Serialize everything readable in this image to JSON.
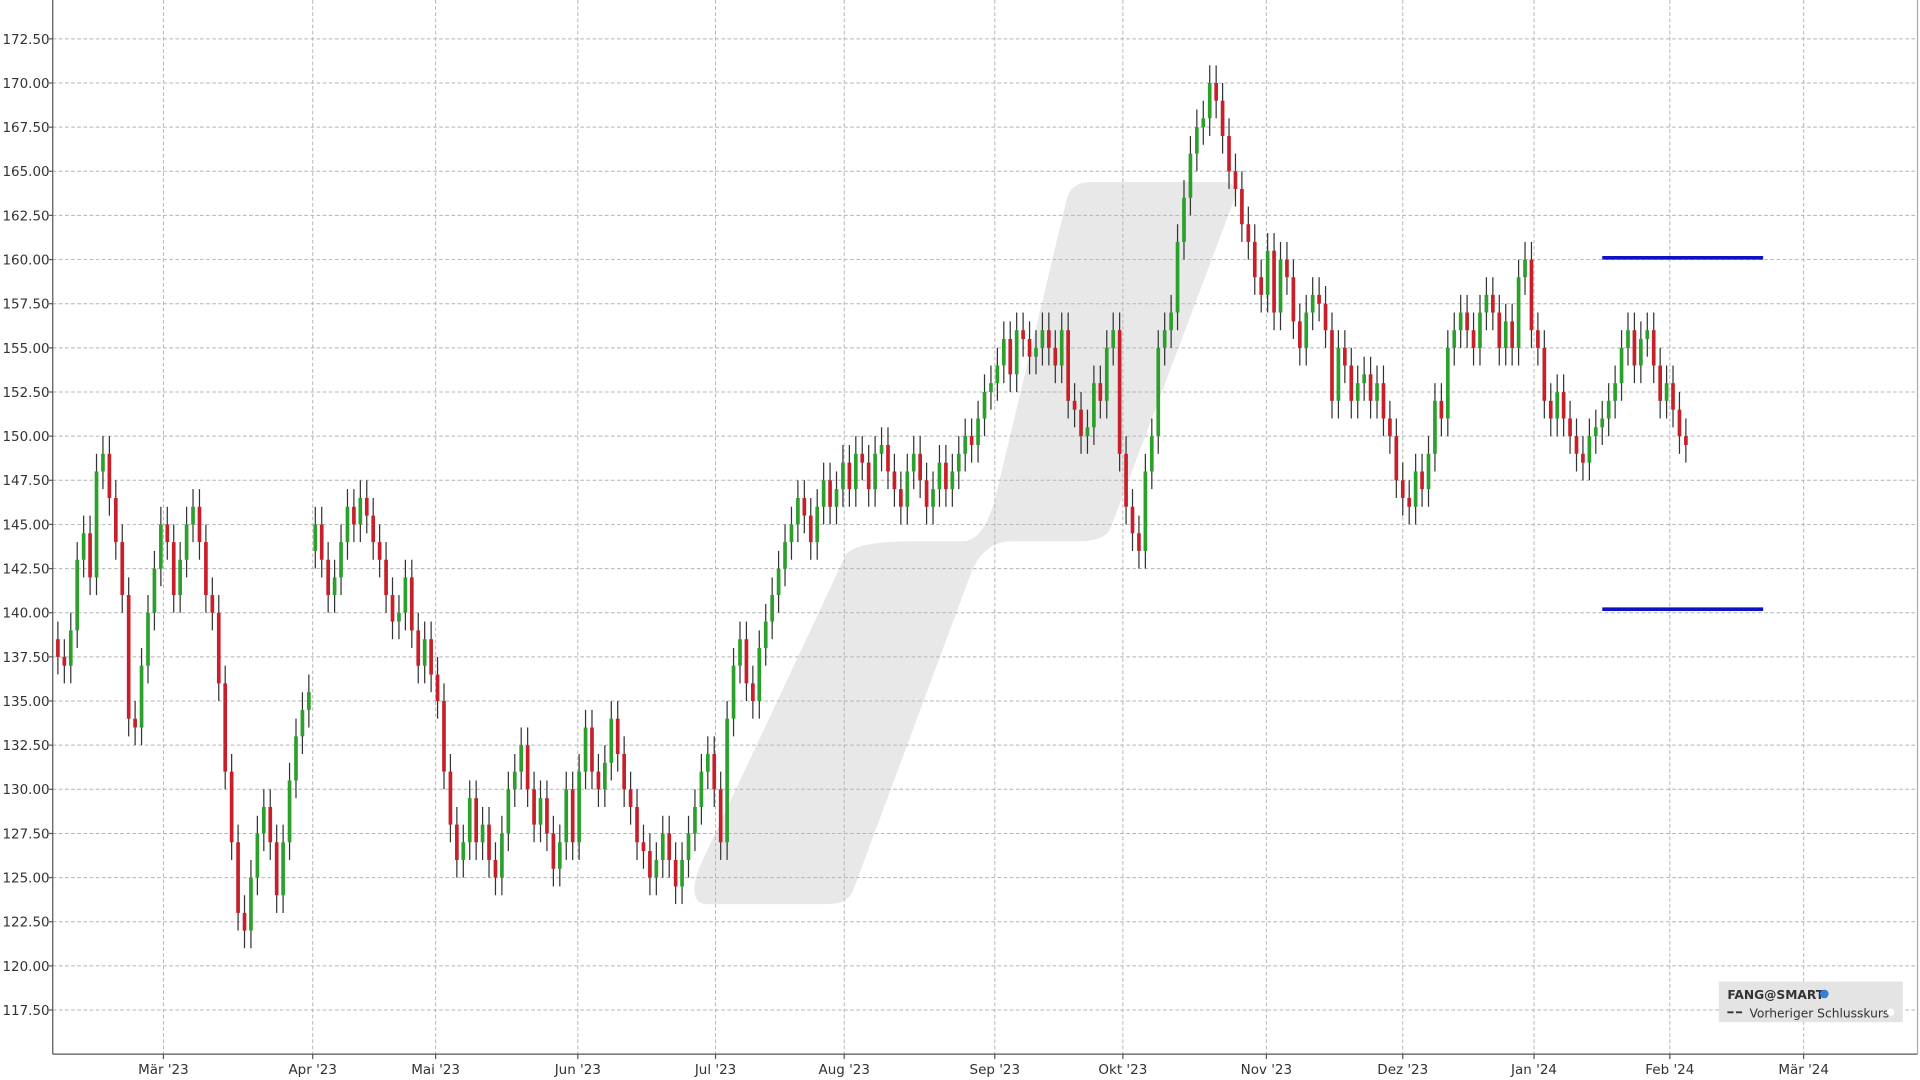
{
  "chart_data": {
    "type": "candlestick",
    "grid": true,
    "up_color": "#2ca02c",
    "down_color": "#c8202a",
    "wick_color": "#333333",
    "xlim": [
      -0.8,
      289
    ],
    "ylim": [
      115,
      174.7
    ],
    "xticks": [
      {
        "value": 16.4,
        "label": "Mär '23"
      },
      {
        "value": 39.6,
        "label": "Apr '23"
      },
      {
        "value": 58.7,
        "label": "Mai '23"
      },
      {
        "value": 80.8,
        "label": "Jun '23"
      },
      {
        "value": 102.2,
        "label": "Jul '23"
      },
      {
        "value": 122.2,
        "label": "Aug '23"
      },
      {
        "value": 145.6,
        "label": "Sep '23"
      },
      {
        "value": 165.5,
        "label": "Okt '23"
      },
      {
        "value": 187.8,
        "label": "Nov '23"
      },
      {
        "value": 209.0,
        "label": "Dez '23"
      },
      {
        "value": 229.4,
        "label": "Jan '24"
      },
      {
        "value": 250.5,
        "label": "Feb '24"
      },
      {
        "value": 271.3,
        "label": "Mär '24"
      }
    ],
    "yticks": [
      {
        "value": 117.5,
        "label": "117.50"
      },
      {
        "value": 120,
        "label": "120.00"
      },
      {
        "value": 122.5,
        "label": "122.50"
      },
      {
        "value": 125,
        "label": "125.00"
      },
      {
        "value": 127.5,
        "label": "127.50"
      },
      {
        "value": 130,
        "label": "130.00"
      },
      {
        "value": 132.5,
        "label": "132.50"
      },
      {
        "value": 135,
        "label": "135.00"
      },
      {
        "value": 137.5,
        "label": "137.50"
      },
      {
        "value": 140,
        "label": "140.00"
      },
      {
        "value": 142.5,
        "label": "142.50"
      },
      {
        "value": 145,
        "label": "145.00"
      },
      {
        "value": 147.5,
        "label": "147.50"
      },
      {
        "value": 150,
        "label": "150.00"
      },
      {
        "value": 152.5,
        "label": "152.50"
      },
      {
        "value": 155,
        "label": "155.00"
      },
      {
        "value": 157.5,
        "label": "157.50"
      },
      {
        "value": 160,
        "label": "160.00"
      },
      {
        "value": 162.5,
        "label": "162.50"
      },
      {
        "value": 165,
        "label": "165.00"
      },
      {
        "value": 167.5,
        "label": "167.50"
      },
      {
        "value": 170,
        "label": "170.00"
      },
      {
        "value": 172.5,
        "label": "172.50"
      }
    ],
    "levels": {
      "color": "#1010c8",
      "values": [
        160.1,
        140.2
      ],
      "xrange": [
        240,
        265
      ]
    },
    "legend": {
      "title": "FANG@SMART",
      "items": [
        "Vorheriger Schlusskurs"
      ]
    },
    "open": [
      138.5,
      137.5,
      137,
      139,
      143,
      144.5,
      142,
      148,
      149,
      146.5,
      144,
      141,
      134,
      133.5,
      137,
      140,
      142.5,
      145,
      144,
      141,
      143,
      145,
      146,
      144,
      141,
      140,
      136,
      131,
      127,
      123,
      122,
      125,
      127.5,
      129,
      127,
      124,
      127,
      130.5,
      133,
      134.5,
      143.5,
      145,
      143,
      141,
      142,
      144,
      146,
      145,
      146.5,
      145.5,
      144,
      143,
      141,
      139.5,
      140,
      142,
      139,
      137,
      138.5,
      136.5,
      135,
      131,
      128,
      126,
      127,
      129.5,
      127,
      128,
      126,
      125,
      127.5,
      130,
      131,
      132.5,
      130,
      128,
      129.5,
      127.5,
      125.5,
      127,
      130,
      127,
      131,
      133.5,
      131,
      130,
      131.5,
      134,
      132,
      130,
      129,
      127,
      126.5,
      125,
      126,
      127.5,
      126,
      124.5,
      126,
      127.5,
      129,
      131,
      132,
      130,
      127,
      134,
      137,
      138.5,
      136,
      135,
      138,
      139.5,
      141,
      142.5,
      144,
      145,
      146.5,
      145.5,
      144,
      146,
      147.5,
      146,
      147,
      148.5,
      147,
      149,
      148.5,
      147,
      149,
      149.5,
      148,
      147,
      146,
      148,
      149,
      147.5,
      146,
      147,
      148.5,
      147,
      148,
      149,
      150,
      149.5,
      151,
      152.5,
      153,
      154,
      155.5,
      153.5,
      156,
      155.5,
      154.5,
      155,
      156,
      155,
      154,
      156,
      152,
      151.5,
      150,
      150.5,
      153,
      152,
      155,
      156,
      149,
      146,
      144.5,
      143.5,
      148,
      150,
      155,
      156,
      157,
      161,
      163.5,
      166,
      167.5,
      168,
      170,
      169,
      167,
      165,
      164,
      162,
      161,
      159,
      158,
      160.5,
      157,
      160,
      159,
      156.5,
      155,
      157,
      158,
      157.5,
      156,
      152,
      155,
      154,
      152,
      153,
      153.5,
      152,
      153,
      151,
      150,
      147.5,
      146.5,
      146,
      148,
      147,
      149,
      152,
      151,
      155,
      156,
      157,
      156,
      155,
      157,
      158,
      157,
      155,
      156.5,
      155,
      159,
      160,
      156,
      155,
      152,
      151,
      152.5,
      151,
      150,
      149,
      148.5,
      150,
      150.5,
      151,
      152,
      153,
      155,
      156,
      154,
      155.5,
      156,
      154,
      152,
      153,
      151.5,
      150
    ],
    "high": [
      139.5,
      138.5,
      140,
      144,
      145.5,
      145.5,
      149,
      150,
      150,
      147.5,
      145,
      142,
      135,
      138,
      141,
      143.5,
      146,
      146,
      145,
      144,
      146,
      147,
      147,
      145,
      142,
      141,
      137,
      132,
      128,
      124,
      126,
      128.5,
      130,
      130,
      128,
      128,
      131.5,
      134,
      135.5,
      136.5,
      146,
      146,
      144,
      143,
      145,
      147,
      147,
      147.5,
      147.5,
      146.5,
      145,
      144,
      142,
      141,
      143,
      143,
      140,
      139.5,
      139.5,
      137.5,
      136,
      132,
      129,
      128,
      130.5,
      130.5,
      129,
      129,
      127,
      128.5,
      131,
      132,
      133.5,
      133.5,
      131,
      130.5,
      130.5,
      128.5,
      128,
      131,
      131,
      132,
      134.5,
      134.5,
      132,
      132.5,
      135,
      135,
      133,
      131,
      130,
      128,
      127.5,
      127,
      128.5,
      128.5,
      127,
      127,
      128.5,
      130,
      132,
      133,
      133,
      131,
      135,
      138,
      139.5,
      139.5,
      137,
      139,
      140.5,
      142,
      143.5,
      145,
      146,
      147.5,
      147.5,
      146.5,
      147,
      148.5,
      148.5,
      148,
      149.5,
      149.5,
      150,
      150,
      149.5,
      150,
      150.5,
      150.5,
      149,
      148,
      149,
      150,
      150,
      148.5,
      148,
      149.5,
      149.5,
      149,
      150,
      151,
      151,
      152,
      153.5,
      154,
      155,
      156.5,
      156.5,
      157,
      157,
      156.5,
      156,
      157,
      157,
      156,
      157,
      157,
      153,
      152.5,
      151.5,
      154,
      154,
      156,
      157,
      157,
      150,
      147,
      145.5,
      149,
      151,
      156,
      157,
      158,
      162,
      164.5,
      167,
      168.5,
      169,
      171,
      171,
      170,
      168,
      166,
      165,
      163,
      162,
      160,
      161.5,
      161.5,
      161,
      161,
      160,
      157.5,
      158,
      159,
      159,
      158.5,
      157,
      156,
      156,
      155,
      154,
      154.5,
      154.5,
      154,
      154,
      152,
      151,
      148.5,
      147.5,
      149,
      149,
      150,
      153,
      153,
      156,
      157,
      158,
      158,
      157,
      158,
      159,
      159,
      158,
      157.5,
      157.5,
      160,
      161,
      161,
      157,
      156,
      153,
      153.5,
      153.5,
      152,
      151,
      150,
      151,
      151.5,
      152,
      153,
      154,
      156,
      157,
      157,
      156.5,
      157,
      157,
      155,
      154,
      154,
      152.5,
      151
    ],
    "low": [
      136.5,
      136,
      136,
      138,
      142,
      141,
      141,
      147,
      145.5,
      143,
      140,
      133,
      132.5,
      132.5,
      136,
      139,
      141.5,
      143,
      140,
      140,
      142,
      144,
      143,
      140,
      139,
      135,
      130,
      126,
      122,
      121,
      121,
      124,
      126.5,
      126,
      123,
      123,
      126,
      129.5,
      132,
      133.5,
      142.5,
      142,
      140,
      140,
      141,
      143,
      144,
      144,
      144.5,
      143,
      142,
      140,
      138.5,
      138.5,
      139,
      138,
      136,
      136,
      135.5,
      134,
      130,
      127,
      125,
      125,
      126,
      126,
      126,
      125,
      124,
      124,
      126.5,
      129,
      130,
      129,
      127,
      127,
      126.5,
      124.5,
      124.5,
      126,
      126,
      126,
      130,
      130,
      129,
      129,
      130.5,
      131,
      129,
      128,
      126,
      125.5,
      124,
      124,
      125,
      125,
      123.5,
      123.5,
      125,
      126.5,
      128,
      130,
      129,
      126,
      126,
      133,
      136,
      135,
      134,
      134,
      137,
      138.5,
      140,
      141.5,
      143,
      144,
      144.5,
      143,
      143,
      145,
      145,
      145,
      146,
      146,
      146,
      147.5,
      146,
      146,
      148,
      147,
      146,
      145,
      145,
      147,
      146.5,
      145,
      145,
      146,
      146,
      146,
      147,
      148,
      148.5,
      148.5,
      150,
      151.5,
      152,
      153,
      152.5,
      152.5,
      154.5,
      153.5,
      153.5,
      154,
      154,
      153,
      153,
      151,
      150.5,
      149,
      149,
      149.5,
      151,
      151,
      154,
      148,
      145,
      143.5,
      142.5,
      142.5,
      147,
      149,
      154,
      155,
      156,
      160,
      162.5,
      165,
      166.5,
      167,
      168,
      166,
      164,
      163,
      161,
      160,
      158,
      157,
      157,
      156,
      156,
      158,
      155.5,
      154,
      154,
      156,
      156.5,
      155,
      151,
      151,
      153,
      151,
      151,
      152,
      151,
      151,
      150,
      149,
      146.5,
      145.5,
      145,
      145,
      146,
      146,
      148,
      150,
      150,
      154,
      155,
      155,
      154,
      154,
      156,
      156,
      154,
      154,
      154,
      154,
      158,
      155,
      154,
      151,
      150,
      150,
      150,
      149,
      148,
      147.5,
      147.5,
      149,
      149.5,
      150,
      151,
      152,
      154,
      153,
      153,
      154.5,
      153,
      151,
      151,
      150.5,
      149,
      148.5
    ],
    "close": [
      137.5,
      137,
      139,
      143,
      144.5,
      142,
      148,
      149,
      146.5,
      144,
      141,
      134,
      133.5,
      137,
      140,
      142.5,
      145,
      144,
      141,
      143,
      145,
      146,
      144,
      141,
      140,
      136,
      131,
      127,
      123,
      122,
      125,
      127.5,
      129,
      127,
      124,
      127,
      130.5,
      133,
      134.5,
      135.5,
      145,
      143,
      141,
      142,
      144,
      146,
      145,
      146.5,
      145.5,
      144,
      143,
      141,
      139.5,
      140,
      142,
      139,
      137,
      138.5,
      136.5,
      135,
      131,
      128,
      126,
      127,
      129.5,
      127,
      128,
      126,
      125,
      127.5,
      130,
      131,
      132.5,
      130,
      128,
      129.5,
      127.5,
      125.5,
      127,
      130,
      127,
      131,
      133.5,
      131,
      130,
      131.5,
      134,
      132,
      130,
      129,
      127,
      126.5,
      125,
      126,
      127.5,
      126,
      124.5,
      126,
      127.5,
      129,
      131,
      132,
      130,
      127,
      134,
      137,
      138.5,
      136,
      135,
      138,
      139.5,
      141,
      142.5,
      144,
      145,
      146.5,
      145.5,
      144,
      146,
      147.5,
      146,
      147,
      148.5,
      147,
      149,
      148.5,
      147,
      149,
      149.5,
      148,
      147,
      146,
      148,
      149,
      147.5,
      146,
      147,
      148.5,
      147,
      148,
      149,
      150,
      149.5,
      151,
      152.5,
      153,
      154,
      155.5,
      153.5,
      156,
      155.5,
      154.5,
      155,
      156,
      155,
      154,
      156,
      152,
      151.5,
      150,
      150.5,
      153,
      152,
      155,
      156,
      149,
      146,
      144.5,
      143.5,
      148,
      150,
      155,
      156,
      157,
      161,
      163.5,
      166,
      167.5,
      168,
      170,
      169,
      167,
      165,
      164,
      162,
      161,
      159,
      158,
      160.5,
      157,
      160,
      159,
      156.5,
      155,
      157,
      158,
      157.5,
      156,
      152,
      155,
      154,
      152,
      153,
      153.5,
      152,
      153,
      151,
      150,
      147.5,
      146.5,
      146,
      148,
      147,
      149,
      152,
      151,
      155,
      156,
      157,
      156,
      155,
      157,
      158,
      157,
      155,
      156.5,
      155,
      159,
      160,
      156,
      155,
      152,
      151,
      152.5,
      151,
      150,
      149,
      148.5,
      150,
      150.5,
      151,
      152,
      153,
      155,
      156,
      154,
      155.5,
      156,
      154,
      152,
      153,
      151.5,
      150,
      149.5
    ]
  }
}
